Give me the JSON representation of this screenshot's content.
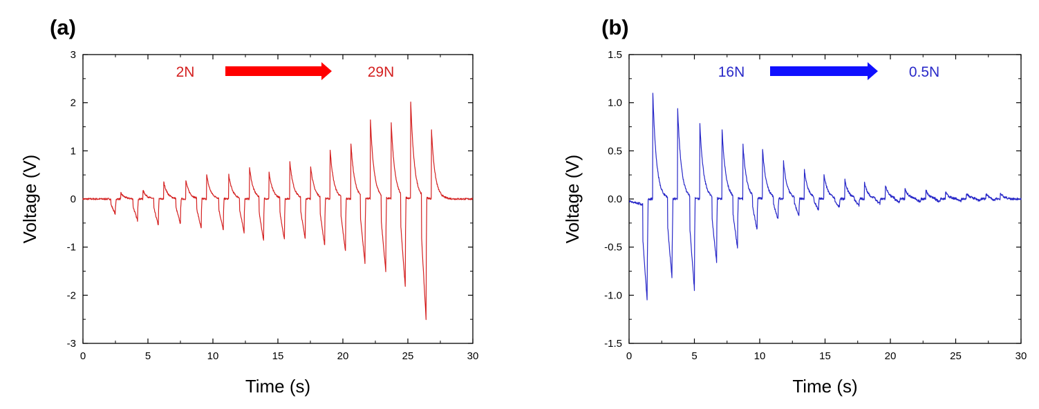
{
  "chart_data": [
    {
      "type": "line",
      "panel_label": "(a)",
      "xlabel": "Time (s)",
      "ylabel": "Voltage (V)",
      "xlim": [
        0,
        30
      ],
      "ylim": [
        -3,
        3
      ],
      "xticks": [
        0,
        5,
        10,
        15,
        20,
        25,
        30
      ],
      "yticks": [
        -3,
        -2,
        -1,
        0,
        1,
        2,
        3
      ],
      "xtick_labels": [
        "0",
        "5",
        "10",
        "15",
        "20",
        "25",
        "30"
      ],
      "ytick_labels": [
        "-3",
        "-2",
        "-1",
        "0",
        "1",
        "2",
        "3"
      ],
      "color": "#d42020",
      "annotation": {
        "from": "2N",
        "to": "29N",
        "arrow_color": "#ff0000",
        "text_color": "#d42020"
      },
      "series": [
        {
          "name": "Voltage",
          "pulses": [
            {
              "t": 2.5,
              "neg": -0.32,
              "pos": 0.12
            },
            {
              "t": 4.2,
              "neg": -0.45,
              "pos": 0.18
            },
            {
              "t": 5.8,
              "neg": -0.55,
              "pos": 0.35
            },
            {
              "t": 7.5,
              "neg": -0.52,
              "pos": 0.38
            },
            {
              "t": 9.1,
              "neg": -0.62,
              "pos": 0.5
            },
            {
              "t": 10.8,
              "neg": -0.65,
              "pos": 0.5
            },
            {
              "t": 12.4,
              "neg": -0.7,
              "pos": 0.65
            },
            {
              "t": 13.9,
              "neg": -0.88,
              "pos": 0.55
            },
            {
              "t": 15.5,
              "neg": -0.85,
              "pos": 0.78
            },
            {
              "t": 17.1,
              "neg": -0.83,
              "pos": 0.68
            },
            {
              "t": 18.6,
              "neg": -0.98,
              "pos": 1.02
            },
            {
              "t": 20.2,
              "neg": -1.1,
              "pos": 1.15
            },
            {
              "t": 21.7,
              "neg": -1.35,
              "pos": 1.63
            },
            {
              "t": 23.3,
              "neg": -1.52,
              "pos": 1.58
            },
            {
              "t": 24.8,
              "neg": -1.85,
              "pos": 2.02
            },
            {
              "t": 26.4,
              "neg": -2.52,
              "pos": 1.42
            }
          ]
        }
      ]
    },
    {
      "type": "line",
      "panel_label": "(b)",
      "xlabel": "Time (s)",
      "ylabel": "Voltage (V)",
      "xlim": [
        0,
        30
      ],
      "ylim": [
        -1.5,
        1.5
      ],
      "xticks": [
        0,
        5,
        10,
        15,
        20,
        25,
        30
      ],
      "yticks": [
        -1.5,
        -1.0,
        -0.5,
        0.0,
        0.5,
        1.0,
        1.5
      ],
      "xtick_labels": [
        "0",
        "5",
        "10",
        "15",
        "20",
        "25",
        "30"
      ],
      "ytick_labels": [
        "-1.5",
        "-1.0",
        "-0.5",
        "0.0",
        "0.5",
        "1.0",
        "1.5"
      ],
      "color": "#2828c8",
      "annotation": {
        "from": "16N",
        "to": "0.5N",
        "arrow_color": "#1010ff",
        "text_color": "#2828c8"
      },
      "series": [
        {
          "name": "Voltage",
          "pulses": [
            {
              "t": 1.4,
              "neg": -1.02,
              "pos": 1.1
            },
            {
              "t": 3.3,
              "neg": -0.85,
              "pos": 0.94
            },
            {
              "t": 5.0,
              "neg": -0.95,
              "pos": 0.78
            },
            {
              "t": 6.7,
              "neg": -0.66,
              "pos": 0.72
            },
            {
              "t": 8.3,
              "neg": -0.52,
              "pos": 0.56
            },
            {
              "t": 9.8,
              "neg": -0.33,
              "pos": 0.51
            },
            {
              "t": 11.4,
              "neg": -0.22,
              "pos": 0.39
            },
            {
              "t": 13.0,
              "neg": -0.18,
              "pos": 0.3
            },
            {
              "t": 14.5,
              "neg": -0.12,
              "pos": 0.26
            },
            {
              "t": 16.1,
              "neg": -0.09,
              "pos": 0.2
            },
            {
              "t": 17.6,
              "neg": -0.07,
              "pos": 0.17
            },
            {
              "t": 19.2,
              "neg": -0.05,
              "pos": 0.14
            },
            {
              "t": 20.7,
              "neg": -0.04,
              "pos": 0.11
            },
            {
              "t": 22.3,
              "neg": -0.03,
              "pos": 0.09
            },
            {
              "t": 23.8,
              "neg": -0.03,
              "pos": 0.07
            },
            {
              "t": 25.4,
              "neg": -0.02,
              "pos": 0.06
            },
            {
              "t": 26.9,
              "neg": -0.02,
              "pos": 0.05
            },
            {
              "t": 28.0,
              "neg": -0.02,
              "pos": 0.06
            }
          ]
        }
      ]
    }
  ]
}
